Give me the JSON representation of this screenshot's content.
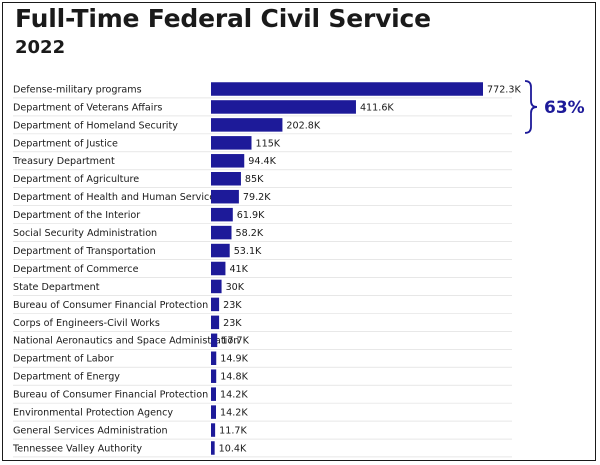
{
  "chart_data": {
    "type": "bar",
    "orientation": "horizontal",
    "title": "Full-Time Federal Civil Service",
    "subtitle": "2022",
    "bar_color": "#1d1a99",
    "gridline_color": "#d9d9d9",
    "categories": [
      "Defense-military programs",
      "Department of Veterans Affairs",
      "Department of Homeland Security",
      "Department of Justice",
      "Treasury Department",
      "Department of Agriculture",
      "Department of Health and Human Services",
      "Department of the Interior",
      "Social Security Administration",
      "Department of Transportation",
      "Department of Commerce",
      "State Department",
      "Bureau of Consumer Financial Protection",
      "Corps of Engineers-Civil Works",
      "National Aeronautics and Space Administration",
      "Department of Labor",
      "Department of Energy",
      "Bureau of Consumer Financial Protection",
      "Environmental Protection Agency",
      "General Services Administration",
      "Tennessee Valley Authority"
    ],
    "values": [
      772300,
      411600,
      202800,
      115000,
      94400,
      85000,
      79200,
      61900,
      58200,
      53100,
      41000,
      30000,
      23000,
      23000,
      17700,
      14900,
      14800,
      14200,
      14200,
      11700,
      10400
    ],
    "value_labels": [
      "772.3K",
      "411.6K",
      "202.8K",
      "115K",
      "94.4K",
      "85K",
      "79.2K",
      "61.9K",
      "58.2K",
      "53.1K",
      "41K",
      "30K",
      "23K",
      "23K",
      "17.7K",
      "14.9K",
      "14.8K",
      "14.2K",
      "14.2K",
      "11.7K",
      "10.4K"
    ],
    "annotation": {
      "text": "63%",
      "spans_categories": [
        0,
        2
      ]
    }
  }
}
